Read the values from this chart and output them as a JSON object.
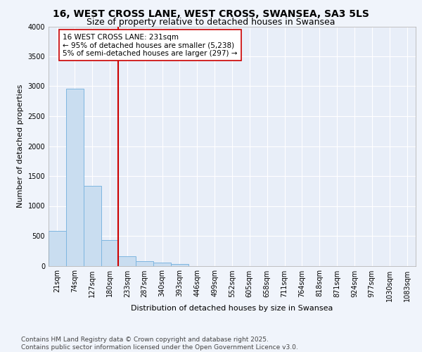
{
  "title_line1": "16, WEST CROSS LANE, WEST CROSS, SWANSEA, SA3 5LS",
  "title_line2": "Size of property relative to detached houses in Swansea",
  "xlabel": "Distribution of detached houses by size in Swansea",
  "ylabel": "Number of detached properties",
  "categories": [
    "21sqm",
    "74sqm",
    "127sqm",
    "180sqm",
    "233sqm",
    "287sqm",
    "340sqm",
    "393sqm",
    "446sqm",
    "499sqm",
    "552sqm",
    "605sqm",
    "658sqm",
    "711sqm",
    "764sqm",
    "818sqm",
    "871sqm",
    "924sqm",
    "977sqm",
    "1030sqm",
    "1083sqm"
  ],
  "values": [
    580,
    2960,
    1340,
    430,
    155,
    75,
    50,
    35,
    0,
    0,
    0,
    0,
    0,
    0,
    0,
    0,
    0,
    0,
    0,
    0,
    0
  ],
  "bar_color": "#c9ddf0",
  "bar_edge_color": "#7eb6e0",
  "vline_color": "#cc0000",
  "vline_x_idx": 4,
  "annotation_text": "16 WEST CROSS LANE: 231sqm\n← 95% of detached houses are smaller (5,238)\n5% of semi-detached houses are larger (297) →",
  "annotation_box_color": "#ffffff",
  "annotation_box_edge": "#cc0000",
  "ylim": [
    0,
    4000
  ],
  "yticks": [
    0,
    500,
    1000,
    1500,
    2000,
    2500,
    3000,
    3500,
    4000
  ],
  "fig_bg_color": "#f0f4fb",
  "plot_bg_color": "#e8eef8",
  "grid_color": "#ffffff",
  "title_fontsize": 10,
  "subtitle_fontsize": 9,
  "axis_label_fontsize": 8,
  "tick_fontsize": 7,
  "annotation_fontsize": 7.5,
  "footnote_fontsize": 6.5,
  "footnote": "Contains HM Land Registry data © Crown copyright and database right 2025.\nContains public sector information licensed under the Open Government Licence v3.0."
}
